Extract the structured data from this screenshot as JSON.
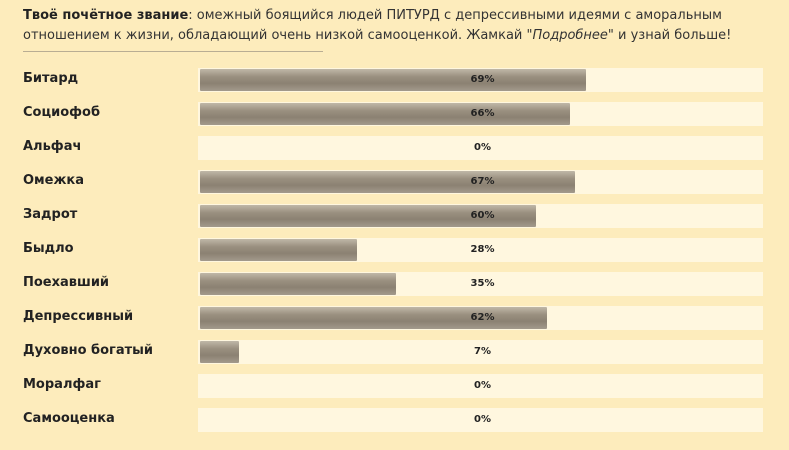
{
  "intro": {
    "label": "Твоё почётное звание",
    "text_before": ": омежный боящийся людей ПИТУРД с депрессивными идеями с аморальным отношением к жизни, обладающий очень низкой самооценкой. Жамкай \"",
    "emphasis": "Подробнее",
    "text_after": "\" и узнай больше!"
  },
  "colors": {
    "background": "#fdecbc",
    "track": "#fff7df",
    "fill": "#8b8172"
  },
  "rows": [
    {
      "label": "Битард",
      "value": 69,
      "pct_text": "69%"
    },
    {
      "label": "Социофоб",
      "value": 66,
      "pct_text": "66%"
    },
    {
      "label": "Альфач",
      "value": 0,
      "pct_text": "0%"
    },
    {
      "label": "Омежка",
      "value": 67,
      "pct_text": "67%"
    },
    {
      "label": "Задрот",
      "value": 60,
      "pct_text": "60%"
    },
    {
      "label": "Быдло",
      "value": 28,
      "pct_text": "28%"
    },
    {
      "label": "Поехавший",
      "value": 35,
      "pct_text": "35%"
    },
    {
      "label": "Депрессивный",
      "value": 62,
      "pct_text": "62%"
    },
    {
      "label": "Духовно богатый",
      "value": 7,
      "pct_text": "7%"
    },
    {
      "label": "Моралфаг",
      "value": 0,
      "pct_text": "0%"
    },
    {
      "label": "Самооценка",
      "value": 0,
      "pct_text": "0%"
    }
  ]
}
